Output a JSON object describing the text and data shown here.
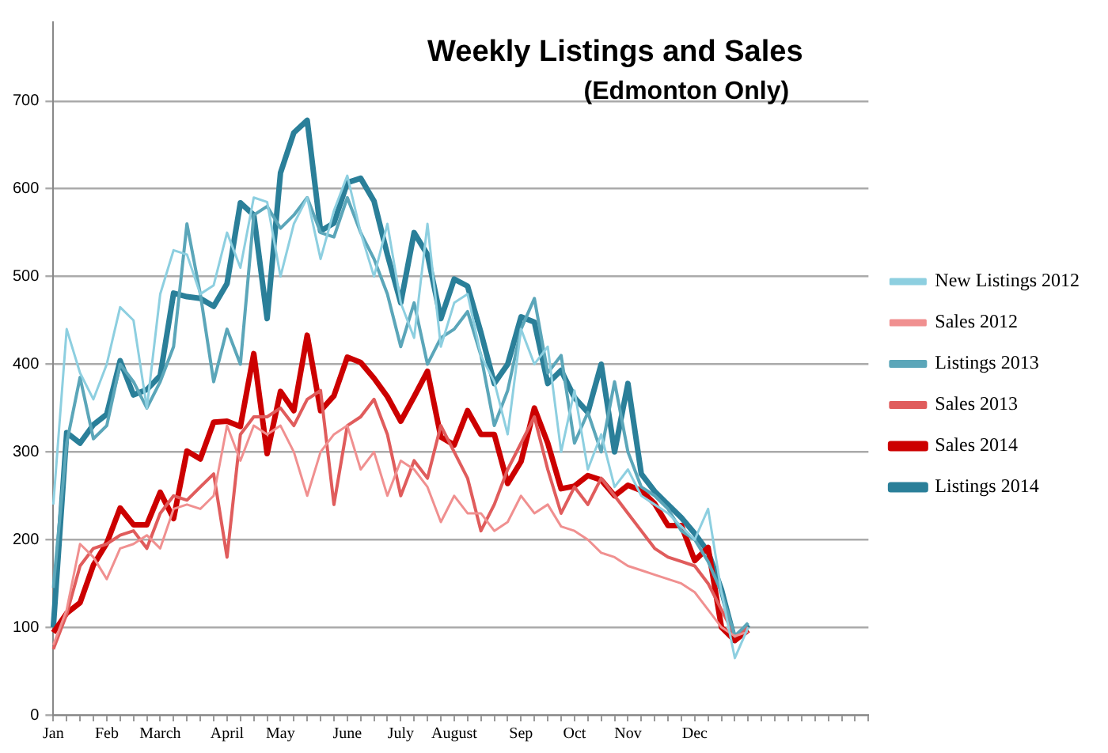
{
  "chart_data": {
    "type": "line",
    "title": "Weekly Listings and Sales",
    "subtitle": "(Edmonton Only)",
    "categories": [
      "Jan",
      null,
      null,
      null,
      "Feb",
      null,
      null,
      null,
      "March",
      null,
      null,
      null,
      null,
      "April",
      null,
      null,
      null,
      "May",
      null,
      null,
      null,
      null,
      "June",
      null,
      null,
      null,
      "July",
      null,
      null,
      null,
      "August",
      null,
      null,
      null,
      null,
      "Sep",
      null,
      null,
      null,
      "Oct",
      null,
      null,
      null,
      "Nov",
      null,
      null,
      null,
      null,
      "Dec",
      null,
      null,
      null,
      null,
      null,
      null,
      null,
      null,
      null,
      null,
      null,
      null,
      null
    ],
    "series": [
      {
        "name": "New Listings 2012",
        "color": "#8dcfe0",
        "values": [
          240,
          440,
          390,
          360,
          400,
          465,
          450,
          350,
          480,
          530,
          525,
          480,
          490,
          550,
          510,
          590,
          585,
          500,
          560,
          590,
          520,
          575,
          615,
          550,
          500,
          560,
          470,
          430,
          560,
          420,
          470,
          480,
          410,
          380,
          320,
          440,
          400,
          420,
          300,
          370,
          280,
          320,
          260,
          280,
          250,
          240,
          230,
          215,
          200,
          235,
          140,
          65,
          100,
          null,
          null,
          null,
          null,
          null,
          null,
          null,
          null,
          null
        ]
      },
      {
        "name": "Sales 2012",
        "color": "#f09090",
        "values": [
          80,
          120,
          195,
          180,
          155,
          190,
          195,
          205,
          190,
          235,
          240,
          235,
          250,
          330,
          290,
          330,
          320,
          330,
          300,
          250,
          300,
          320,
          330,
          280,
          300,
          250,
          290,
          280,
          260,
          220,
          250,
          230,
          230,
          210,
          220,
          250,
          230,
          240,
          215,
          210,
          200,
          185,
          180,
          170,
          165,
          160,
          155,
          150,
          140,
          120,
          100,
          90,
          95,
          null,
          null,
          null,
          null,
          null,
          null,
          null,
          null,
          null
        ]
      },
      {
        "name": "Listings 2013",
        "color": "#5ba6b9",
        "values": [
          145,
          310,
          385,
          315,
          330,
          400,
          380,
          350,
          380,
          420,
          560,
          480,
          380,
          440,
          400,
          570,
          580,
          555,
          570,
          590,
          550,
          545,
          590,
          550,
          520,
          480,
          420,
          470,
          400,
          430,
          440,
          460,
          410,
          330,
          370,
          440,
          475,
          390,
          410,
          310,
          345,
          300,
          380,
          300,
          260,
          250,
          235,
          210,
          200,
          175,
          140,
          90,
          105,
          null,
          null,
          null,
          null,
          null,
          null,
          null,
          null,
          null
        ]
      },
      {
        "name": "Sales 2013",
        "color": "#e05c5c",
        "values": [
          75,
          115,
          170,
          190,
          195,
          205,
          210,
          190,
          230,
          250,
          245,
          260,
          275,
          180,
          320,
          340,
          340,
          350,
          330,
          360,
          370,
          240,
          330,
          340,
          360,
          320,
          250,
          290,
          270,
          330,
          300,
          270,
          210,
          240,
          280,
          310,
          340,
          280,
          230,
          260,
          240,
          270,
          250,
          230,
          210,
          190,
          180,
          175,
          170,
          150,
          120,
          90,
          100,
          null,
          null,
          null,
          null,
          null,
          null,
          null,
          null,
          null
        ]
      },
      {
        "name": "Sales 2014",
        "color": "#cc0000",
        "values": [
          94,
          116,
          128,
          171,
          196,
          236,
          217,
          217,
          254,
          224,
          301,
          292,
          334,
          335,
          329,
          412,
          298,
          369,
          347,
          433,
          347,
          364,
          408,
          402,
          384,
          363,
          335,
          363,
          392,
          317,
          308,
          347,
          320,
          320,
          264,
          289,
          350,
          310,
          258,
          261,
          273,
          268,
          250,
          262,
          256,
          241,
          216,
          216,
          176,
          191,
          100,
          85,
          97,
          null,
          null,
          null,
          null,
          null,
          null,
          null,
          null,
          null
        ]
      },
      {
        "name": "Listings 2014",
        "color": "#2a7f99",
        "values": [
          100,
          322,
          310,
          331,
          343,
          404,
          365,
          371,
          387,
          481,
          477,
          475,
          466,
          492,
          584,
          570,
          452,
          618,
          664,
          678,
          552,
          561,
          607,
          612,
          586,
          525,
          470,
          550,
          525,
          452,
          497,
          489,
          436,
          378,
          400,
          454,
          448,
          378,
          393,
          362,
          345,
          400,
          300,
          378,
          275,
          255,
          240,
          225,
          207,
          186,
          143,
          85,
          103,
          null,
          null,
          null,
          null,
          null,
          null,
          null,
          null,
          null
        ]
      }
    ],
    "ylim": [
      0,
      790
    ],
    "yticks": [
      0,
      100,
      200,
      300,
      400,
      500,
      600,
      700
    ],
    "grid": "y",
    "legend": "right",
    "marker": "none",
    "line_style": "solid"
  }
}
